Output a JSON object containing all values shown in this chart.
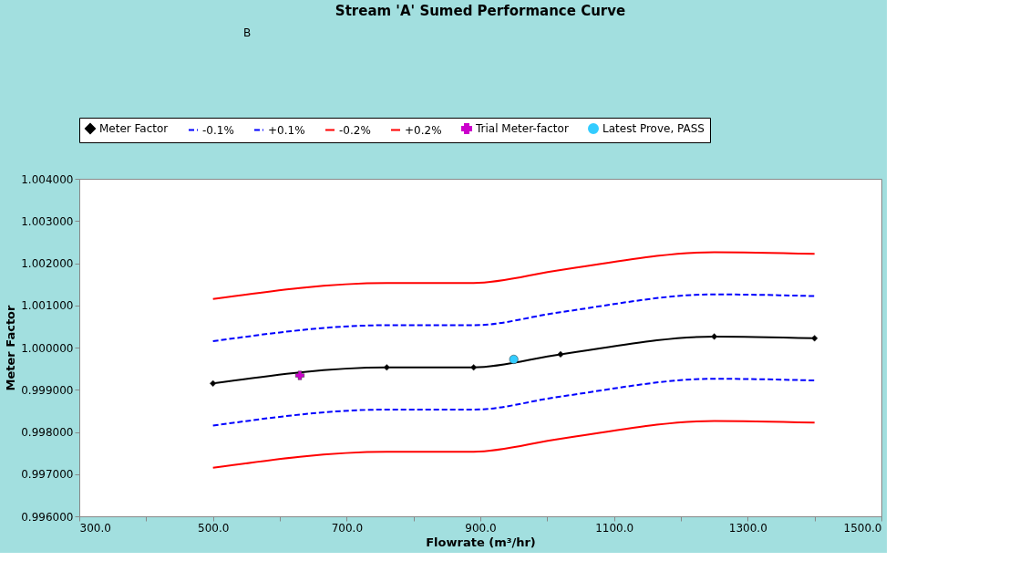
{
  "chart_data": {
    "type": "line",
    "title": "Stream 'A' Sumed Performance Curve",
    "xlabel": "Flowrate (m³/hr)",
    "ylabel": "Meter Factor",
    "annotations": [
      "B"
    ],
    "x": [
      500,
      760,
      890,
      1020,
      1250,
      1400
    ],
    "series": [
      {
        "name": "Meter Factor",
        "color": "#000000",
        "marker": "diamond",
        "line_style": "solid",
        "values": [
          0.99915,
          0.99953,
          0.99953,
          0.99984,
          1.00026,
          1.00022
        ]
      },
      {
        "name": "-0.1%",
        "color": "#0000ff",
        "marker": "none",
        "line_style": "dashed",
        "values": [
          0.99815,
          0.99853,
          0.99853,
          0.99884,
          0.99926,
          0.99922
        ]
      },
      {
        "name": "+0.1%",
        "color": "#0000ff",
        "marker": "none",
        "line_style": "dashed",
        "values": [
          1.00015,
          1.00053,
          1.00053,
          1.00084,
          1.00126,
          1.00122
        ]
      },
      {
        "name": "-0.2%",
        "color": "#ff0000",
        "marker": "none",
        "line_style": "solid",
        "values": [
          0.99715,
          0.99753,
          0.99753,
          0.99784,
          0.99826,
          0.99822
        ]
      },
      {
        "name": "+0.2%",
        "color": "#ff0000",
        "marker": "none",
        "line_style": "solid",
        "values": [
          1.00115,
          1.00153,
          1.00153,
          1.00184,
          1.00226,
          1.00222
        ]
      },
      {
        "name": "Trial Meter-factor",
        "type": "scatter",
        "color": "#cc00cc",
        "marker": "cross",
        "x": [
          630
        ],
        "values": [
          0.99934
        ]
      },
      {
        "name": "Latest Prove, PASS",
        "type": "scatter",
        "color": "#33ccff",
        "marker": "circle",
        "x": [
          950
        ],
        "values": [
          0.99972
        ]
      }
    ],
    "xlim": [
      300,
      1500
    ],
    "xticks": [
      {
        "value": 300,
        "label": "300.0"
      },
      {
        "value": 400,
        "label": null
      },
      {
        "value": 500,
        "label": "500.0"
      },
      {
        "value": 600,
        "label": null
      },
      {
        "value": 700,
        "label": "700.0"
      },
      {
        "value": 800,
        "label": null
      },
      {
        "value": 900,
        "label": "900.0"
      },
      {
        "value": 1000,
        "label": null
      },
      {
        "value": 1100,
        "label": "1100.0"
      },
      {
        "value": 1200,
        "label": null
      },
      {
        "value": 1300,
        "label": "1300.0"
      },
      {
        "value": 1400,
        "label": null
      },
      {
        "value": 1500,
        "label": "1500.0"
      }
    ],
    "ylim": [
      0.996,
      1.004
    ],
    "yticks": [
      {
        "value": 0.996,
        "label": "0.996000"
      },
      {
        "value": 0.997,
        "label": "0.997000"
      },
      {
        "value": 0.998,
        "label": "0.998000"
      },
      {
        "value": 0.999,
        "label": "0.999000"
      },
      {
        "value": 1.0,
        "label": "1.000000"
      },
      {
        "value": 1.001,
        "label": "1.001000"
      },
      {
        "value": 1.002,
        "label": "1.002000"
      },
      {
        "value": 1.003,
        "label": "1.003000"
      },
      {
        "value": 1.004,
        "label": "1.004000"
      }
    ],
    "grid": false,
    "legend": "top"
  }
}
